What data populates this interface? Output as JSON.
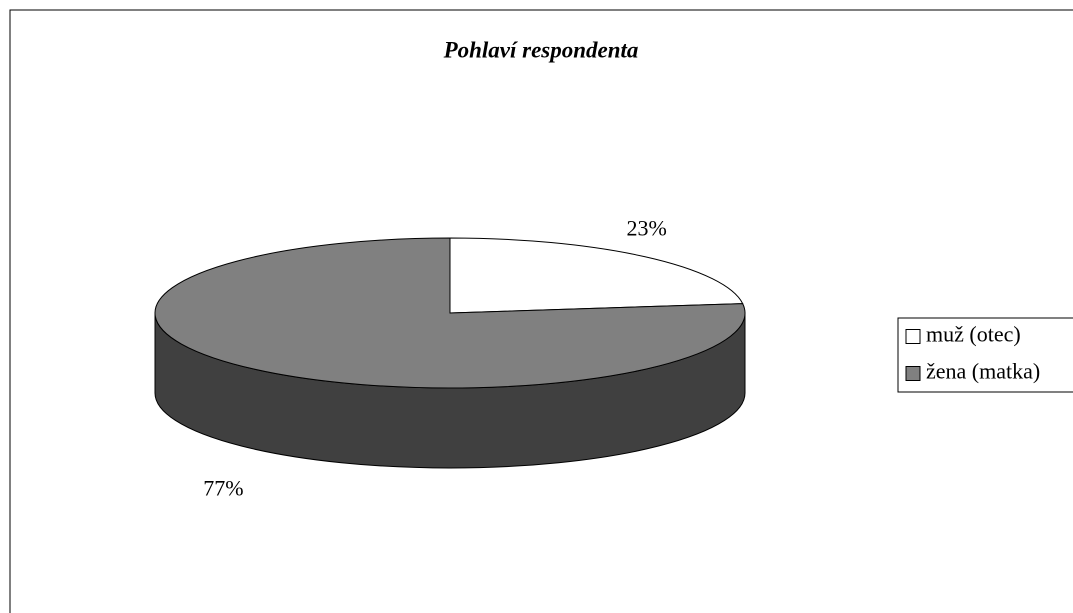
{
  "chart_data": {
    "type": "pie",
    "title": "Pohlaví respondenta",
    "categories": [
      "muž (otec)",
      "žena (matka)"
    ],
    "values": [
      23,
      77
    ],
    "value_labels": [
      "23%",
      "77%"
    ],
    "colors": [
      "#ffffff",
      "#808080"
    ],
    "legend": "right"
  }
}
